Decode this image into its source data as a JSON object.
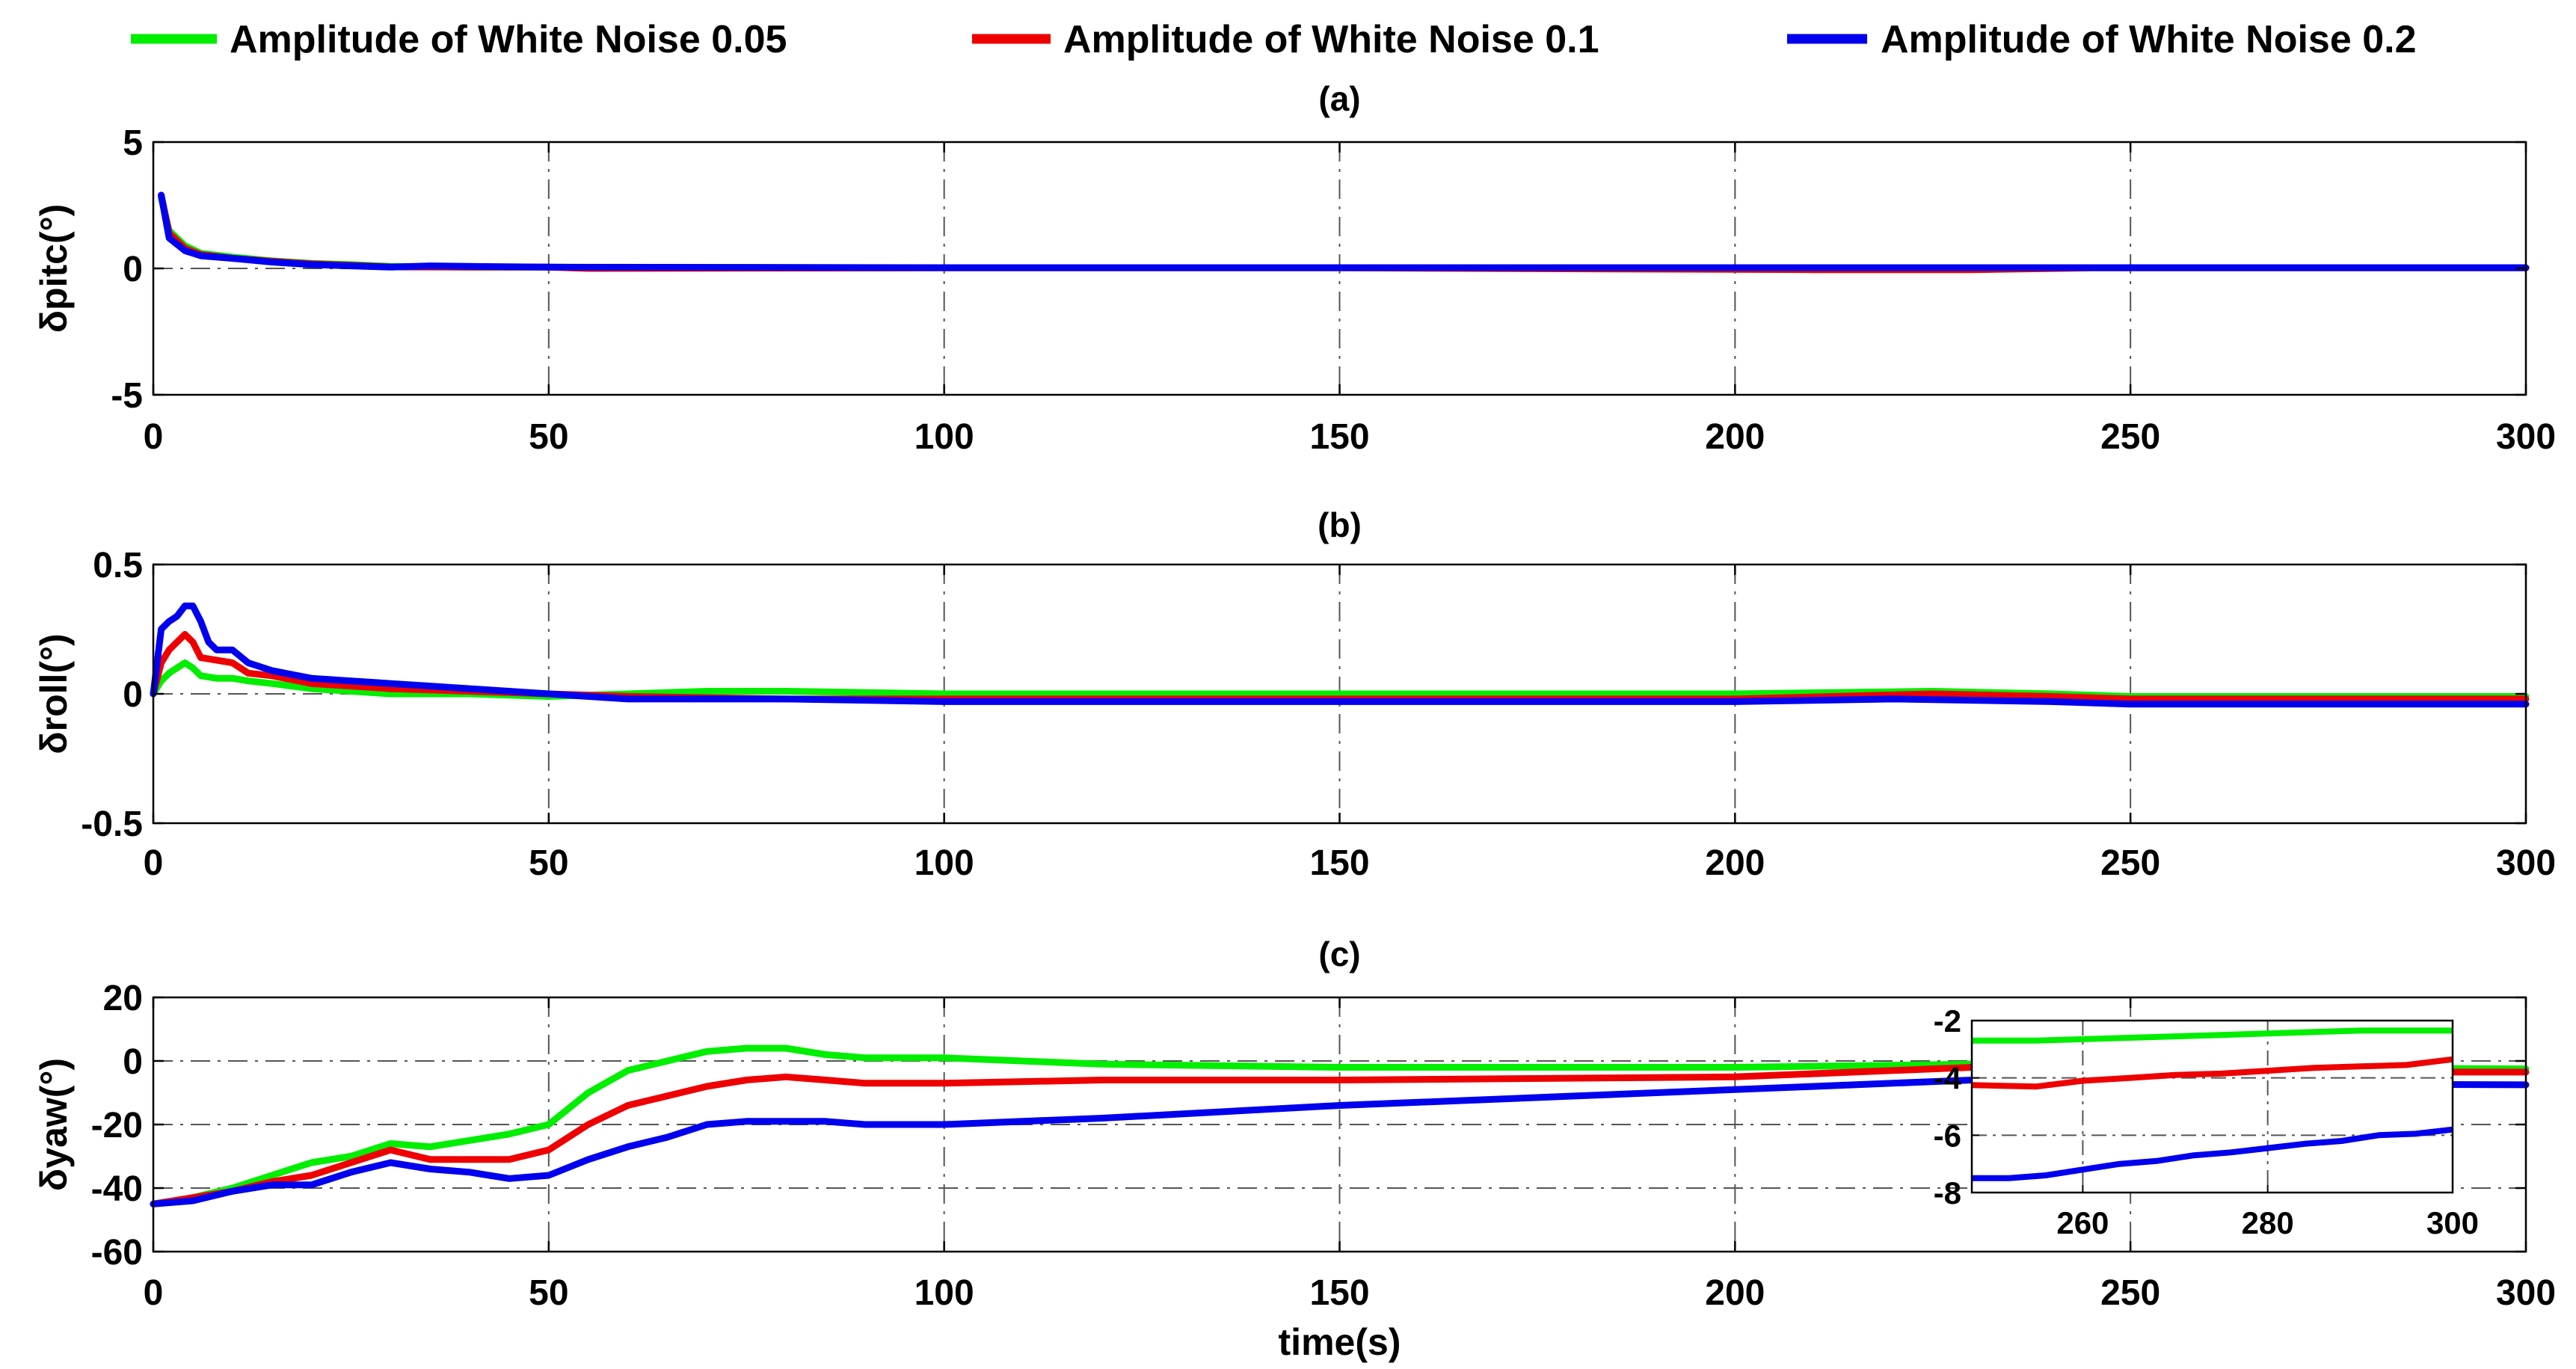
{
  "chart_data": [
    {
      "type": "line",
      "panel": "(a)",
      "title": "(a)",
      "xlabel": "",
      "ylabel": "δpitc(°)",
      "xlim": [
        0,
        300
      ],
      "ylim": [
        -5,
        5
      ],
      "xticks": [
        0,
        50,
        100,
        150,
        200,
        250,
        300
      ],
      "yticks": [
        -5,
        0,
        5
      ],
      "grid": "dashed",
      "series": [
        {
          "name": "Amplitude of White Noise 0.05",
          "color": "#00ee00",
          "x": [
            1,
            2,
            4,
            6,
            10,
            15,
            20,
            25,
            30,
            40,
            50,
            60,
            100,
            150,
            200,
            250,
            300
          ],
          "y": [
            2.8,
            1.5,
            0.9,
            0.6,
            0.45,
            0.3,
            0.2,
            0.15,
            0.08,
            0.05,
            0.05,
            0.03,
            0.02,
            0.02,
            0.02,
            0.02,
            0.02
          ]
        },
        {
          "name": "Amplitude of White Noise 0.1",
          "color": "#ee0000",
          "x": [
            1,
            2,
            4,
            6,
            10,
            15,
            20,
            25,
            30,
            40,
            50,
            55,
            100,
            150,
            210,
            230,
            245,
            250,
            300
          ],
          "y": [
            2.9,
            1.4,
            0.8,
            0.55,
            0.4,
            0.28,
            0.18,
            0.12,
            0.06,
            0.05,
            0.05,
            0.0,
            0.02,
            0.02,
            -0.05,
            -0.05,
            0.02,
            0.02,
            0.02
          ]
        },
        {
          "name": "Amplitude of White Noise 0.2",
          "color": "#0000ee",
          "x": [
            1,
            2,
            4,
            6,
            10,
            15,
            20,
            25,
            30,
            35,
            40,
            50,
            100,
            150,
            200,
            250,
            300
          ],
          "y": [
            2.9,
            1.2,
            0.7,
            0.5,
            0.4,
            0.25,
            0.15,
            0.1,
            0.05,
            0.1,
            0.08,
            0.05,
            0.03,
            0.03,
            0.03,
            0.03,
            0.03
          ]
        }
      ]
    },
    {
      "type": "line",
      "panel": "(b)",
      "title": "(b)",
      "xlabel": "",
      "ylabel": "δroll(°)",
      "xlim": [
        0,
        300
      ],
      "ylim": [
        -0.5,
        0.5
      ],
      "xticks": [
        0,
        50,
        100,
        150,
        200,
        250,
        300
      ],
      "yticks": [
        -0.5,
        0,
        0.5
      ],
      "ytick_labels": [
        "-0.5",
        "0",
        "0.5"
      ],
      "grid": "dashed",
      "series": [
        {
          "name": "Amplitude of White Noise 0.05",
          "color": "#00ee00",
          "x": [
            0,
            1,
            2,
            3,
            4,
            5,
            6,
            8,
            10,
            12,
            15,
            20,
            25,
            30,
            40,
            50,
            60,
            70,
            80,
            100,
            150,
            200,
            225,
            240,
            250,
            300
          ],
          "y": [
            0.0,
            0.05,
            0.08,
            0.1,
            0.12,
            0.1,
            0.07,
            0.06,
            0.06,
            0.05,
            0.04,
            0.02,
            0.01,
            0.0,
            0.0,
            -0.01,
            0.0,
            0.01,
            0.01,
            0.0,
            0.0,
            0.0,
            0.01,
            0.0,
            -0.01,
            -0.01
          ]
        },
        {
          "name": "Amplitude of White Noise 0.1",
          "color": "#ee0000",
          "x": [
            0,
            1,
            2,
            3,
            4,
            5,
            6,
            8,
            10,
            12,
            15,
            20,
            25,
            30,
            40,
            50,
            60,
            80,
            100,
            150,
            200,
            225,
            240,
            250,
            300
          ],
          "y": [
            0.0,
            0.12,
            0.17,
            0.2,
            0.23,
            0.2,
            0.14,
            0.13,
            0.12,
            0.08,
            0.07,
            0.04,
            0.03,
            0.02,
            0.01,
            0.0,
            -0.01,
            -0.02,
            -0.02,
            -0.02,
            -0.02,
            0.0,
            -0.01,
            -0.02,
            -0.02
          ]
        },
        {
          "name": "Amplitude of White Noise 0.2",
          "color": "#0000ee",
          "x": [
            0,
            1,
            2,
            3,
            4,
            5,
            6,
            7,
            8,
            10,
            12,
            15,
            20,
            25,
            30,
            35,
            40,
            50,
            60,
            80,
            100,
            140,
            170,
            200,
            220,
            240,
            250,
            300
          ],
          "y": [
            0.0,
            0.25,
            0.28,
            0.3,
            0.34,
            0.34,
            0.28,
            0.2,
            0.17,
            0.17,
            0.12,
            0.09,
            0.06,
            0.05,
            0.04,
            0.03,
            0.02,
            0.0,
            -0.02,
            -0.02,
            -0.03,
            -0.03,
            -0.03,
            -0.03,
            -0.02,
            -0.03,
            -0.04,
            -0.04
          ]
        }
      ]
    },
    {
      "type": "line",
      "panel": "(c)",
      "title": "(c)",
      "xlabel": "time(s)",
      "ylabel": "δyaw(°)",
      "xlim": [
        0,
        300
      ],
      "ylim": [
        -60,
        20
      ],
      "xticks": [
        0,
        50,
        100,
        150,
        200,
        250,
        300
      ],
      "yticks": [
        -60,
        -40,
        -20,
        0,
        20
      ],
      "grid": "dashed",
      "series": [
        {
          "name": "Amplitude of White Noise 0.05",
          "color": "#00ee00",
          "x": [
            0,
            5,
            10,
            15,
            20,
            25,
            30,
            35,
            40,
            45,
            50,
            55,
            60,
            65,
            70,
            75,
            80,
            85,
            90,
            100,
            120,
            150,
            200,
            230,
            250,
            300
          ],
          "y": [
            -45,
            -43,
            -40,
            -36,
            -32,
            -30,
            -26,
            -27,
            -25,
            -23,
            -20,
            -10,
            -3,
            0,
            3,
            4,
            4,
            2,
            1,
            1,
            -1,
            -2,
            -2,
            -1,
            -2,
            -2.5
          ]
        },
        {
          "name": "Amplitude of White Noise 0.1",
          "color": "#ee0000",
          "x": [
            0,
            5,
            10,
            15,
            20,
            25,
            30,
            35,
            40,
            45,
            50,
            55,
            60,
            65,
            70,
            75,
            80,
            85,
            90,
            100,
            120,
            150,
            200,
            230,
            250,
            300
          ],
          "y": [
            -45,
            -43,
            -41,
            -38,
            -36,
            -32,
            -28,
            -31,
            -31,
            -31,
            -28,
            -20,
            -14,
            -11,
            -8,
            -6,
            -5,
            -6,
            -7,
            -7,
            -6,
            -6,
            -5,
            -2,
            -3.5,
            -3.5
          ]
        },
        {
          "name": "Amplitude of White Noise 0.2",
          "color": "#0000ee",
          "x": [
            0,
            5,
            10,
            15,
            20,
            25,
            30,
            35,
            40,
            45,
            50,
            55,
            60,
            65,
            70,
            75,
            80,
            85,
            90,
            100,
            120,
            150,
            180,
            200,
            230,
            250,
            300
          ],
          "y": [
            -45,
            -44,
            -41,
            -39,
            -39,
            -35,
            -32,
            -34,
            -35,
            -37,
            -36,
            -31,
            -27,
            -24,
            -20,
            -19,
            -19,
            -19,
            -20,
            -20,
            -18,
            -14,
            -11,
            -9,
            -6,
            -7,
            -7.5
          ]
        }
      ],
      "inset": {
        "xlim": [
          248,
          300
        ],
        "ylim": [
          -8,
          -2
        ],
        "xticks": [
          260,
          280,
          300
        ],
        "yticks": [
          -8,
          -6,
          -4,
          -2
        ],
        "series": [
          {
            "name": "Amplitude of White Noise 0.05",
            "color": "#00ee00",
            "x": [
              248,
              255,
              260,
              265,
              270,
              275,
              280,
              285,
              290,
              295,
              300
            ],
            "y": [
              -2.7,
              -2.7,
              -2.65,
              -2.6,
              -2.55,
              -2.5,
              -2.45,
              -2.4,
              -2.35,
              -2.35,
              -2.35
            ]
          },
          {
            "name": "Amplitude of White Noise 0.1",
            "color": "#ee0000",
            "x": [
              248,
              255,
              260,
              265,
              270,
              275,
              280,
              285,
              290,
              295,
              300
            ],
            "y": [
              -4.25,
              -4.3,
              -4.1,
              -4.0,
              -3.9,
              -3.85,
              -3.75,
              -3.65,
              -3.6,
              -3.55,
              -3.35
            ]
          },
          {
            "name": "Amplitude of White Noise 0.2",
            "color": "#0000ee",
            "x": [
              248,
              252,
              256,
              260,
              264,
              268,
              272,
              276,
              280,
              284,
              288,
              292,
              296,
              300
            ],
            "y": [
              -7.5,
              -7.5,
              -7.4,
              -7.2,
              -7.0,
              -6.9,
              -6.7,
              -6.6,
              -6.45,
              -6.3,
              -6.2,
              -6.0,
              -5.95,
              -5.8
            ]
          }
        ]
      }
    }
  ],
  "legend": [
    {
      "label": "Amplitude of White Noise 0.05",
      "color": "#00ee00"
    },
    {
      "label": "Amplitude of White Noise 0.1",
      "color": "#ee0000"
    },
    {
      "label": "Amplitude of White Noise 0.2",
      "color": "#0000ee"
    }
  ]
}
